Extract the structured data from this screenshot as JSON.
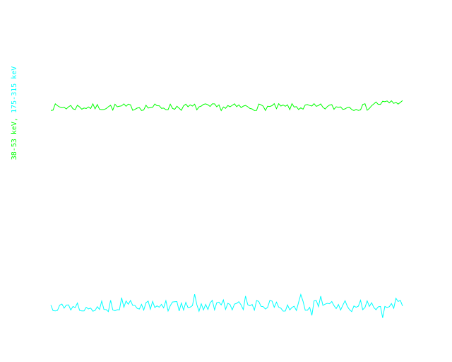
{
  "chart_data": {
    "type": "line",
    "title": "",
    "xlabel": "",
    "ylabel_parts": [
      "38-53 keV,",
      "175-315 keV"
    ],
    "grid": false,
    "background": "#ffffff",
    "series": [
      {
        "name": "38-53 keV",
        "color": "#00ff00",
        "baseline": 0.5,
        "jitter": 0.3,
        "trend": [
          [
            0.0,
            0.0
          ],
          [
            0.9,
            0.0
          ],
          [
            0.92,
            0.3
          ],
          [
            1.0,
            0.4
          ]
        ],
        "points": 160,
        "seed": 7,
        "ylim": [
          0,
          1
        ]
      },
      {
        "name": "175-315 keV",
        "color": "#00ffff",
        "baseline": 0.5,
        "jitter": 0.35,
        "trend": [
          [
            0.0,
            0.0
          ],
          [
            1.0,
            0.0
          ]
        ],
        "points": 160,
        "seed": 13,
        "ylim": [
          0,
          1
        ]
      }
    ]
  }
}
